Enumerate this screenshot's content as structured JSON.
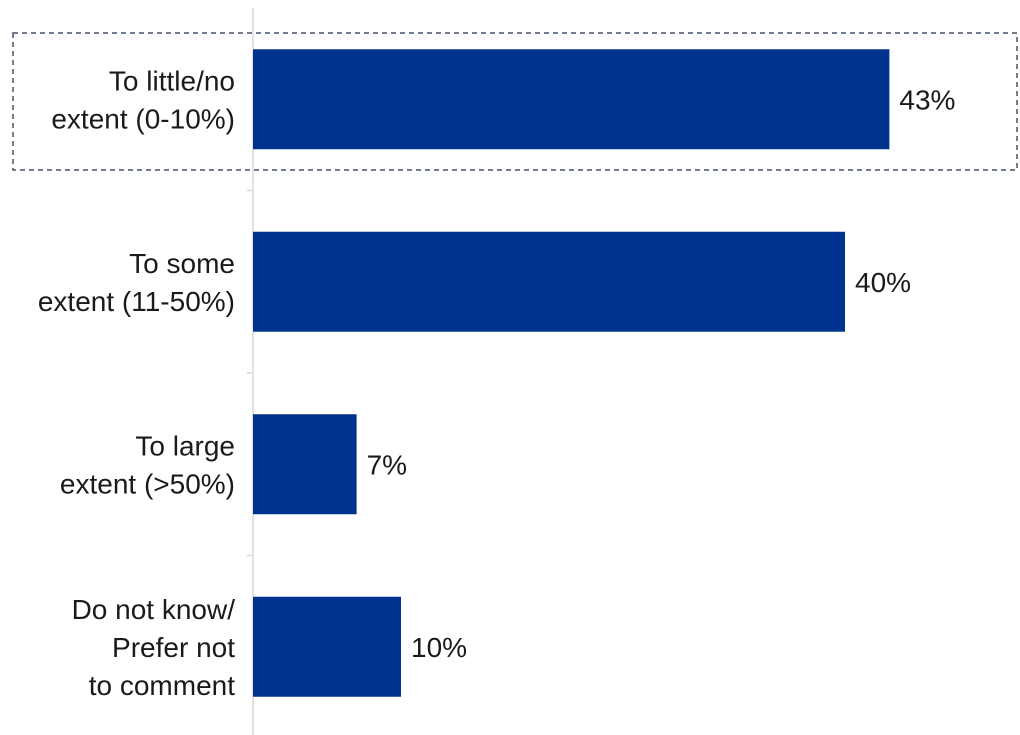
{
  "chart_data": {
    "type": "bar",
    "orientation": "horizontal",
    "categories": [
      "To little/no extent (0-10%)",
      "To some extent (11-50%)",
      "To large extent (>50%)",
      "Do not know/ Prefer not to comment"
    ],
    "category_lines": [
      [
        "To little/no",
        "extent (0-10%)"
      ],
      [
        "To some",
        "extent (11-50%)"
      ],
      [
        "To large",
        "extent (>50%)"
      ],
      [
        "Do not know/",
        "Prefer not",
        "to comment"
      ]
    ],
    "values": [
      43,
      40,
      7,
      10
    ],
    "value_labels": [
      "43%",
      "40%",
      "7%",
      "10%"
    ],
    "title": "",
    "xlabel": "",
    "ylabel": "",
    "grid": false,
    "legend": false,
    "highlighted_category_index": 0
  },
  "colors": {
    "bar": "#00338D",
    "axis": "#d9d9d9",
    "highlight_border": "#44546A",
    "text": "#1a1a1a"
  }
}
